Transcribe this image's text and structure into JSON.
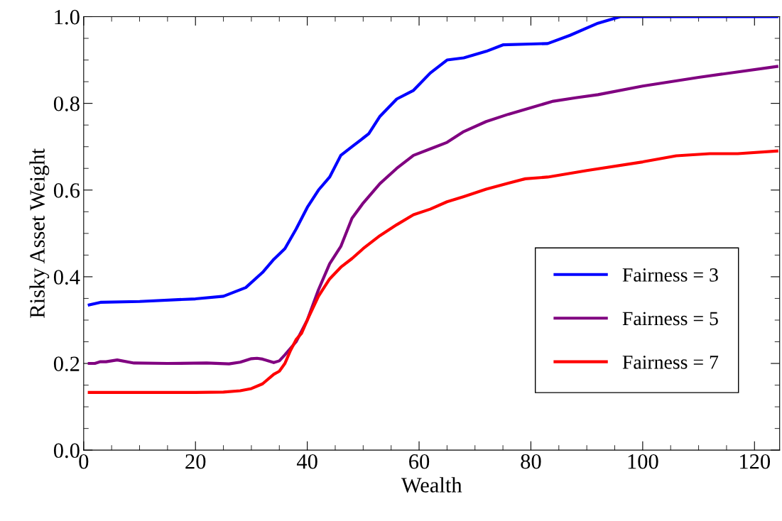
{
  "chart_data": {
    "type": "line",
    "xlabel": "Wealth",
    "ylabel": "Risky Asset Weight",
    "xlim": [
      0,
      124.5
    ],
    "ylim": [
      0,
      1.0
    ],
    "xticks": [
      0,
      20,
      40,
      60,
      80,
      100,
      120
    ],
    "yticks": [
      {
        "value": 0,
        "label": "0.0"
      },
      {
        "value": 0.2,
        "label": "0.2"
      },
      {
        "value": 0.4,
        "label": "0.4"
      },
      {
        "value": 0.6,
        "label": "0.6"
      },
      {
        "value": 0.8,
        "label": "0.8"
      },
      {
        "value": 1.0,
        "label": "1.0"
      }
    ],
    "grid": false,
    "legend": "bottom right",
    "marker": "none",
    "line_style": "solid",
    "series": [
      {
        "name": "Fairness = 3",
        "color": "#0000ff",
        "x": [
          1,
          3,
          10,
          20,
          25,
          29,
          32,
          34,
          36,
          38,
          40,
          42,
          44,
          46,
          48,
          50,
          51,
          53,
          56,
          59,
          62,
          65,
          68,
          72,
          75,
          80,
          83,
          87,
          92,
          96,
          124
        ],
        "values": [
          0.335,
          0.341,
          0.343,
          0.349,
          0.355,
          0.375,
          0.41,
          0.44,
          0.465,
          0.51,
          0.56,
          0.6,
          0.63,
          0.68,
          0.7,
          0.72,
          0.73,
          0.77,
          0.81,
          0.83,
          0.87,
          0.9,
          0.905,
          0.92,
          0.935,
          0.937,
          0.938,
          0.957,
          0.985,
          1.0,
          1.0
        ]
      },
      {
        "name": "Fairness = 5",
        "color": "#800080",
        "x": [
          1,
          2,
          3,
          4,
          6,
          9,
          15,
          22,
          26,
          28,
          30,
          31,
          32,
          34,
          35,
          36,
          38,
          40,
          42,
          44,
          46,
          48,
          50,
          53,
          56,
          59,
          62,
          65,
          68,
          72,
          76,
          80,
          84,
          88,
          92,
          100,
          110,
          124
        ],
        "values": [
          0.2,
          0.2,
          0.204,
          0.204,
          0.208,
          0.201,
          0.2,
          0.201,
          0.199,
          0.203,
          0.211,
          0.212,
          0.21,
          0.202,
          0.206,
          0.22,
          0.25,
          0.3,
          0.37,
          0.43,
          0.47,
          0.535,
          0.57,
          0.615,
          0.65,
          0.68,
          0.695,
          0.71,
          0.735,
          0.758,
          0.775,
          0.79,
          0.805,
          0.813,
          0.82,
          0.84,
          0.86,
          0.885
        ]
      },
      {
        "name": "Fairness = 7",
        "color": "#ff0000",
        "x": [
          1,
          20,
          25,
          28,
          30,
          32,
          34,
          35,
          36,
          37,
          38,
          39,
          40,
          42,
          44,
          46,
          48,
          50,
          53,
          56,
          59,
          62,
          65,
          68,
          72,
          76,
          79,
          83,
          90,
          100,
          106,
          112,
          117,
          124
        ],
        "values": [
          0.133,
          0.133,
          0.134,
          0.137,
          0.142,
          0.153,
          0.175,
          0.182,
          0.2,
          0.23,
          0.255,
          0.27,
          0.3,
          0.355,
          0.395,
          0.422,
          0.442,
          0.465,
          0.495,
          0.52,
          0.543,
          0.556,
          0.573,
          0.585,
          0.602,
          0.616,
          0.626,
          0.63,
          0.645,
          0.665,
          0.679,
          0.684,
          0.684,
          0.69
        ]
      }
    ]
  }
}
